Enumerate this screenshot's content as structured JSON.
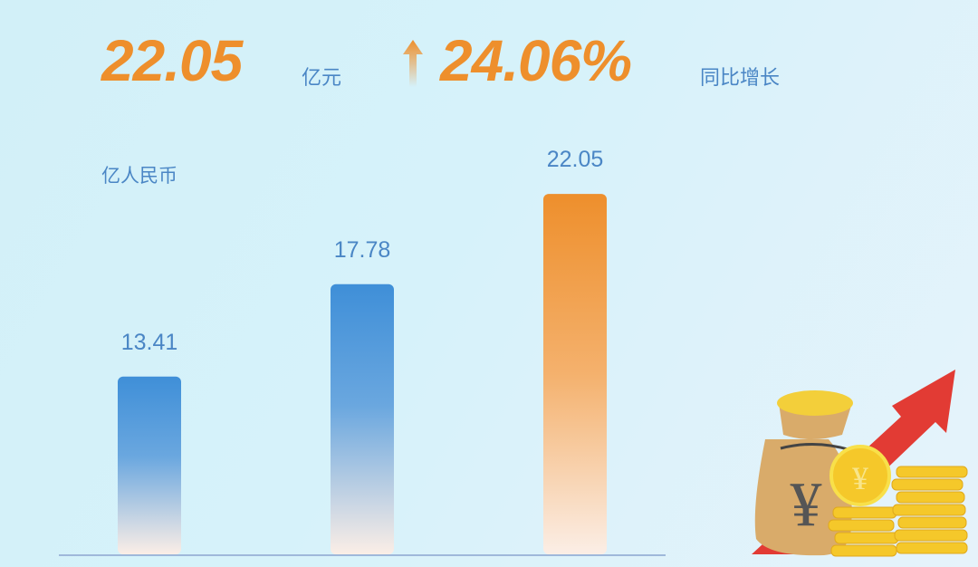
{
  "headline": {
    "value": "22.05",
    "value_unit": "亿元",
    "arrow_icon": "arrow-up-icon",
    "growth": "24.06%",
    "growth_label": "同比增长"
  },
  "chart_data": {
    "type": "bar",
    "title": "",
    "xlabel": "",
    "ylabel": "亿人民币",
    "categories": [
      "",
      "",
      ""
    ],
    "values": [
      13.41,
      17.78,
      22.05
    ],
    "value_labels": [
      "13.41",
      "17.78",
      "22.05"
    ],
    "ylim": [
      5,
      23
    ],
    "grid": false,
    "bar_colors": [
      "#3f8fd8",
      "#3f8fd8",
      "#ee8f2c"
    ]
  },
  "colors": {
    "accent": "#ee8f2c",
    "text": "#4a86c5",
    "bar_blue": "#3f8fd8"
  },
  "illustration": {
    "icon": "money-bag-coins-growth-icon",
    "symbol": "¥"
  }
}
